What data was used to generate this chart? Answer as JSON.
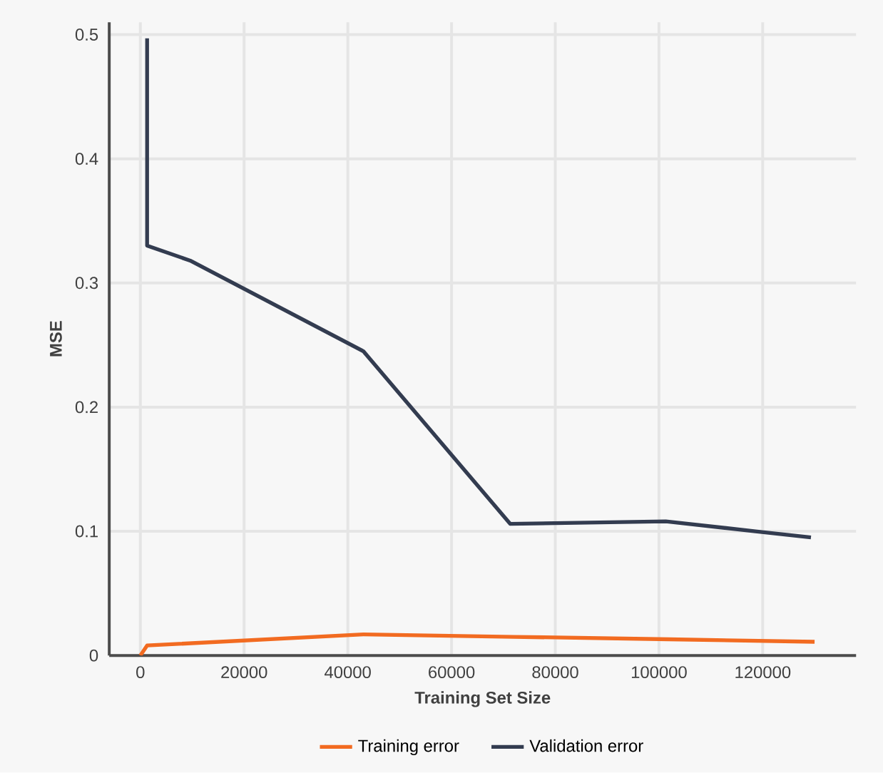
{
  "chart_data": {
    "type": "line",
    "xlabel": "Training Set Size",
    "ylabel": "MSE",
    "xlim": [
      -6000,
      138000
    ],
    "ylim": [
      0,
      0.51
    ],
    "xticks": [
      0,
      20000,
      40000,
      60000,
      80000,
      100000,
      120000
    ],
    "yticks": [
      0,
      0.1,
      0.2,
      0.3,
      0.4,
      0.5
    ],
    "grid": true,
    "legend": "bottom",
    "marker": "none",
    "line_style": "solid",
    "series": [
      {
        "name": "Training error",
        "color": "#f26b21",
        "x": [
          0,
          1300,
          43000,
          72000,
          102000,
          130000
        ],
        "values": [
          0,
          0.008,
          0.017,
          0.015,
          0.013,
          0.011
        ]
      },
      {
        "name": "Validation error",
        "color": "#333c50",
        "x": [
          1300,
          1300,
          9600,
          43000,
          71300,
          101300,
          118600,
          129300
        ],
        "values": [
          0.497,
          0.33,
          0.318,
          0.245,
          0.106,
          0.108,
          0.1,
          0.095
        ]
      }
    ]
  }
}
